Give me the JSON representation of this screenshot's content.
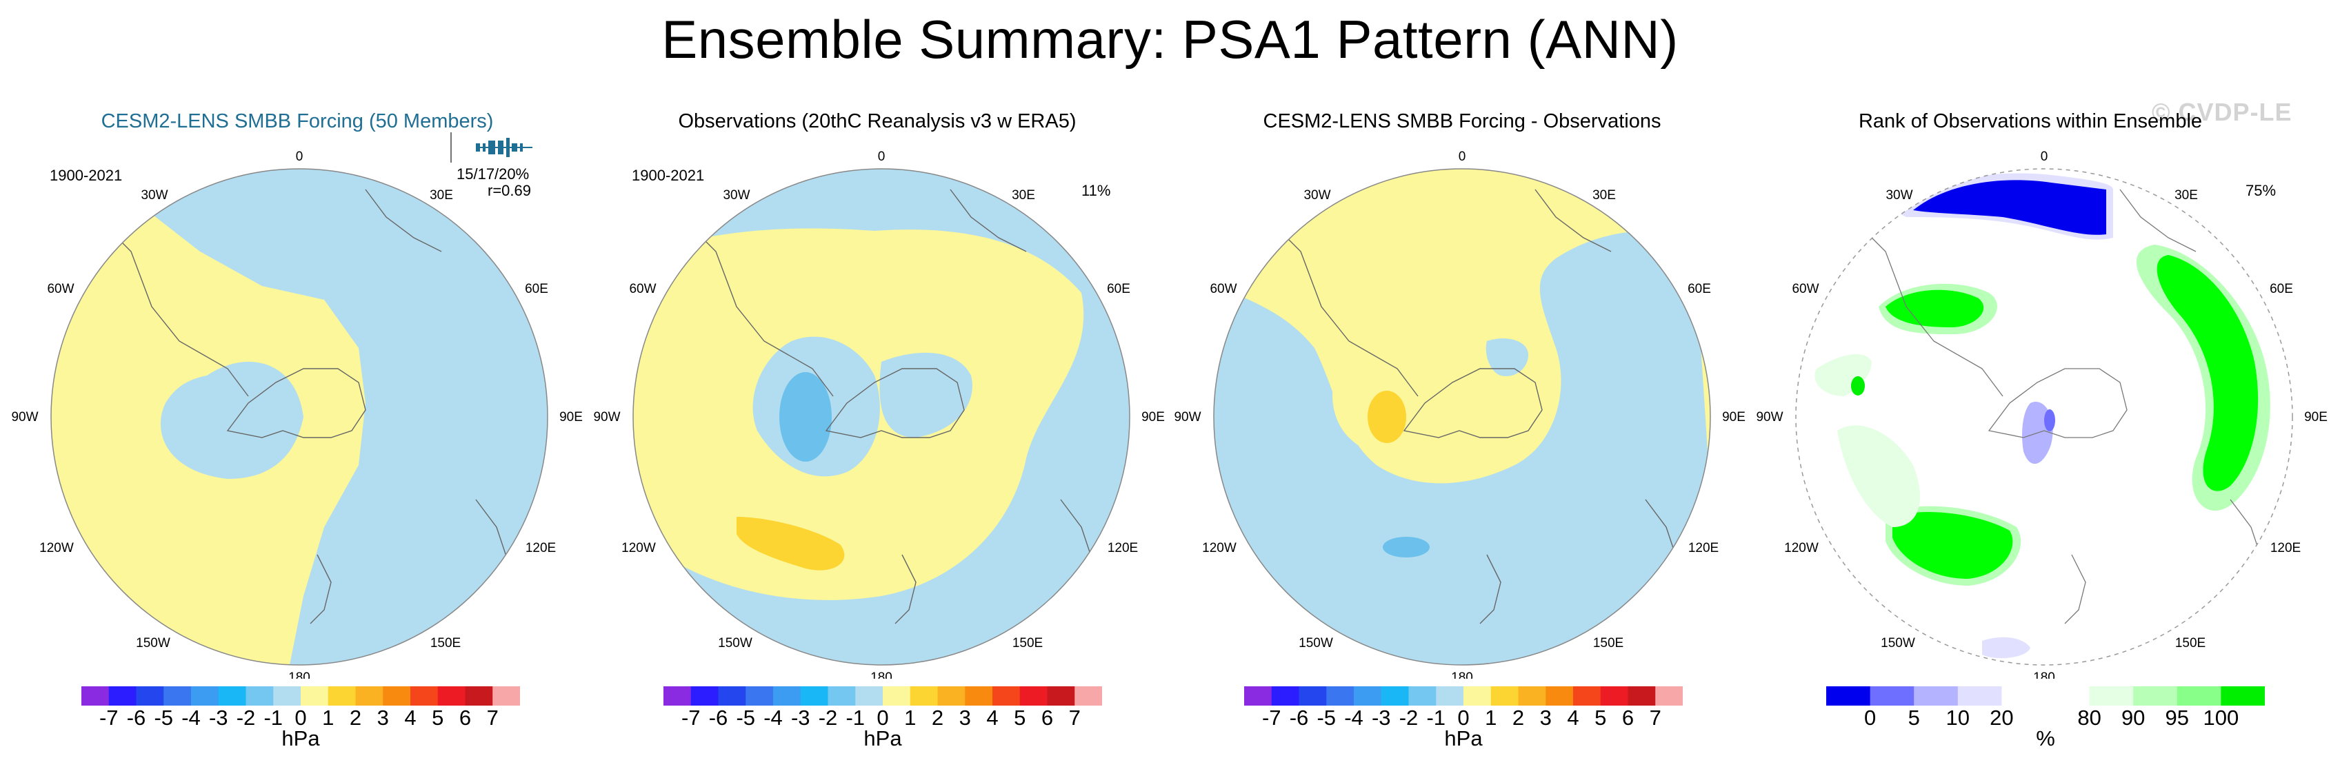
{
  "title": "Ensemble Summary: PSA1 Pattern (ANN)",
  "watermark": "© CVDP-LE",
  "colors": {
    "light_blue": "#b2dcf0",
    "mid_blue": "#6cc1ec",
    "light_yellow": "#fbf79a",
    "gold": "#fdd532",
    "rank_blue": "#0000ee",
    "rank_green": "#00ff00",
    "title_blue": "#1f6e93"
  },
  "lon_labels": [
    "0",
    "30E",
    "60E",
    "90E",
    "120E",
    "150E",
    "180",
    "150W",
    "120W",
    "90W",
    "60W",
    "30W"
  ],
  "panels": [
    {
      "title": "CESM2-LENS SMBB Forcing (50 Members)",
      "period": "1900-2021",
      "stats_line1": "15/17/20%",
      "stats_line2": "r=0.69",
      "percent": ""
    },
    {
      "title": "Observations (20thC Reanalysis v3 w ERA5)",
      "period": "1900-2021",
      "percent": "11%"
    },
    {
      "title": "CESM2-LENS SMBB Forcing - Observations",
      "period": "",
      "percent": ""
    },
    {
      "title": "Rank of Observations within Ensemble",
      "period": "",
      "percent": "75%"
    }
  ],
  "hpa_colorbar": {
    "colors": [
      "#8a2be2",
      "#2b1dff",
      "#2346ee",
      "#3a76ef",
      "#3b9cf2",
      "#19b7f5",
      "#74c7f0",
      "#b2dcf0",
      "#fbf79a",
      "#fdd532",
      "#fbb222",
      "#f98a10",
      "#f5451b",
      "#ed1c24",
      "#c8191e",
      "#f7a7a7"
    ],
    "ticks": [
      "-7",
      "-6",
      "-5",
      "-4",
      "-3",
      "-2",
      "-1",
      "0",
      "1",
      "2",
      "3",
      "4",
      "5",
      "6",
      "7"
    ],
    "unit": "hPa"
  },
  "rank_colorbar": {
    "colors": [
      "#0000ee",
      "#6f6fff",
      "#b3b3ff",
      "#e1e1ff",
      "#ffffff",
      "#ffffff",
      "#e4ffe4",
      "#b8ffb8",
      "#88ff88",
      "#00ee00"
    ],
    "ticks": [
      "0",
      "5",
      "10",
      "20",
      "80",
      "90",
      "95",
      "100"
    ],
    "unit": "%"
  }
}
